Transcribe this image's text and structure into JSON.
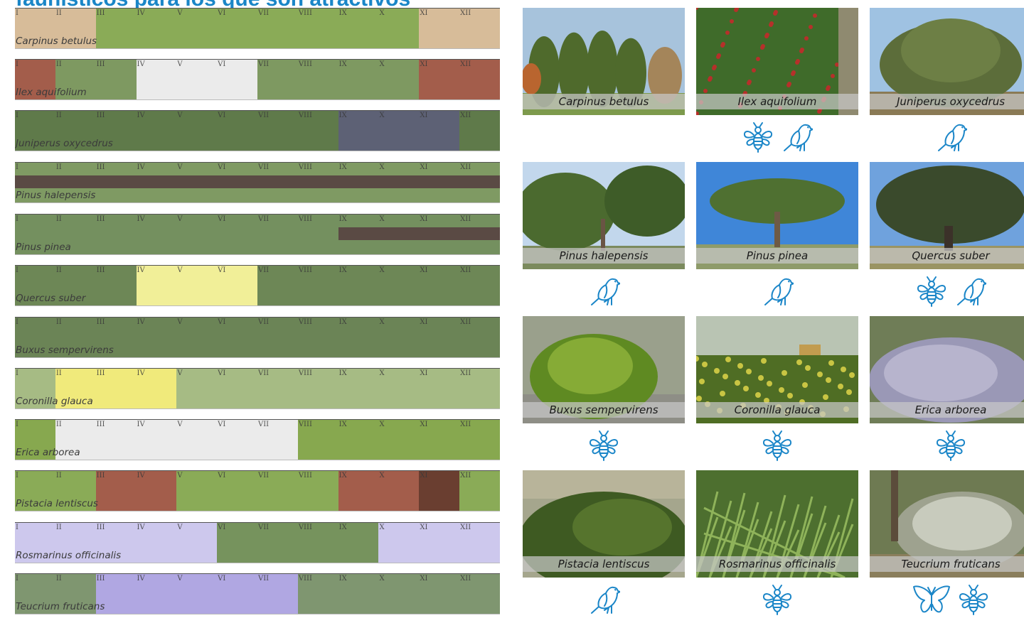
{
  "title": "faunísticos para los que son atractivos",
  "months": [
    "I",
    "II",
    "III",
    "IV",
    "V",
    "VI",
    "VII",
    "VIII",
    "IX",
    "X",
    "XI",
    "XII"
  ],
  "colors": {
    "accent": "#1a86c7",
    "foliage_green": "#8aab57",
    "dark_green": "#677f52",
    "flower_brown": "#a35d4b",
    "white_flower": "#ebebeb",
    "cone_dark": "#5a4a44",
    "yellow_flower": "#f1ef98",
    "lilac_flower": "#cdc8ed",
    "purple_flower": "#b0a7e2"
  },
  "bars": [
    {
      "species": "Carpinus betulus",
      "base": "#8aab57",
      "segments": [
        {
          "from": 1,
          "to": 2,
          "color": "#d7bc99"
        },
        {
          "from": 11,
          "to": 12,
          "color": "#d7bc99"
        }
      ]
    },
    {
      "species": "Ilex aquifolium",
      "base": "#7e9961",
      "segments": [
        {
          "from": 1,
          "to": 1,
          "color": "#a35d4b"
        },
        {
          "from": 4,
          "to": 6,
          "color": "#ebebeb"
        },
        {
          "from": 11,
          "to": 12,
          "color": "#a35d4b"
        }
      ]
    },
    {
      "species": "Juniperus oxycedrus",
      "base": "#5f7a4a",
      "segments": [
        {
          "from": 9,
          "to": 11,
          "color": "#5d6175"
        }
      ]
    },
    {
      "species": "Pinus halepensis",
      "base": "#7f9a63",
      "stripe": {
        "from": 1,
        "to": 12,
        "color": "#5a4a44"
      }
    },
    {
      "species": "Pinus pinea",
      "base": "#74905f",
      "stripe": {
        "from": 9,
        "to": 12,
        "color": "#5a4a44"
      }
    },
    {
      "species": "Quercus suber",
      "base": "#6d8756",
      "segments": [
        {
          "from": 4,
          "to": 6,
          "color": "#f1ef98"
        }
      ]
    },
    {
      "species": "Buxus sempervirens",
      "base": "#6b8456",
      "segments": []
    },
    {
      "species": "Coronilla glauca",
      "base": "#a6bb84",
      "segments": [
        {
          "from": 2,
          "to": 4,
          "color": "#f0ea7b"
        }
      ]
    },
    {
      "species": "Erica arborea",
      "base": "#87a84f",
      "segments": [
        {
          "from": 2,
          "to": 7,
          "color": "#ebebeb"
        }
      ]
    },
    {
      "species": "Pistacia lentiscus",
      "base": "#8aab57",
      "segments": [
        {
          "from": 3,
          "to": 4,
          "color": "#a35d4b"
        },
        {
          "from": 9,
          "to": 10,
          "color": "#a35d4b"
        },
        {
          "from": 11,
          "to": 11,
          "color": "#6a3e30"
        }
      ]
    },
    {
      "species": "Rosmarinus officinalis",
      "base": "#cdc8ed",
      "segments": [
        {
          "from": 6,
          "to": 9,
          "color": "#76935d"
        }
      ]
    },
    {
      "species": "Teucrium fruticans",
      "base": "#7f9670",
      "segments": [
        {
          "from": 3,
          "to": 7,
          "color": "#b0a7e2"
        }
      ]
    }
  ],
  "cards": [
    {
      "caption": "Carpinus betulus",
      "icons": [],
      "sky": "#a7c3dc",
      "scene": "hedge"
    },
    {
      "caption": "Ilex aquifolium",
      "icons": [
        "bee-icon",
        "bird-icon"
      ],
      "sky": "#6e8a4d",
      "scene": "holly"
    },
    {
      "caption": "Juniperus oxycedrus",
      "icons": [
        "bird-icon"
      ],
      "sky": "#9fc2e2",
      "scene": "bush"
    },
    {
      "caption": "Pinus halepensis",
      "icons": [
        "bird-icon"
      ],
      "sky": "#c2d7ec",
      "scene": "pine"
    },
    {
      "caption": "Pinus pinea",
      "icons": [
        "bird-icon"
      ],
      "sky": "#3f86d8",
      "scene": "umbrella"
    },
    {
      "caption": "Quercus suber",
      "icons": [
        "bee-icon",
        "bird-icon"
      ],
      "sky": "#6fa2dd",
      "scene": "oak"
    },
    {
      "caption": "Buxus sempervirens",
      "icons": [
        "bee-icon"
      ],
      "sky": "#9aa08c",
      "scene": "box"
    },
    {
      "caption": "Coronilla glauca",
      "icons": [
        "bee-icon"
      ],
      "sky": "#b9c4b3",
      "scene": "shrubs"
    },
    {
      "caption": "Erica arborea",
      "icons": [
        "bee-icon"
      ],
      "sky": "#7f8b6d",
      "scene": "heath"
    },
    {
      "caption": "Pistacia lentiscus",
      "icons": [
        "bird-icon"
      ],
      "sky": "#a5a68d",
      "scene": "lentisk"
    },
    {
      "caption": "Rosmarinus officinalis",
      "icons": [
        "bee-icon"
      ],
      "sky": "#5e7d3f",
      "scene": "rosemary"
    },
    {
      "caption": "Teucrium fruticans",
      "icons": [
        "butterfly-icon",
        "bee-icon"
      ],
      "sky": "#6e7a52",
      "scene": "teucrium"
    }
  ]
}
